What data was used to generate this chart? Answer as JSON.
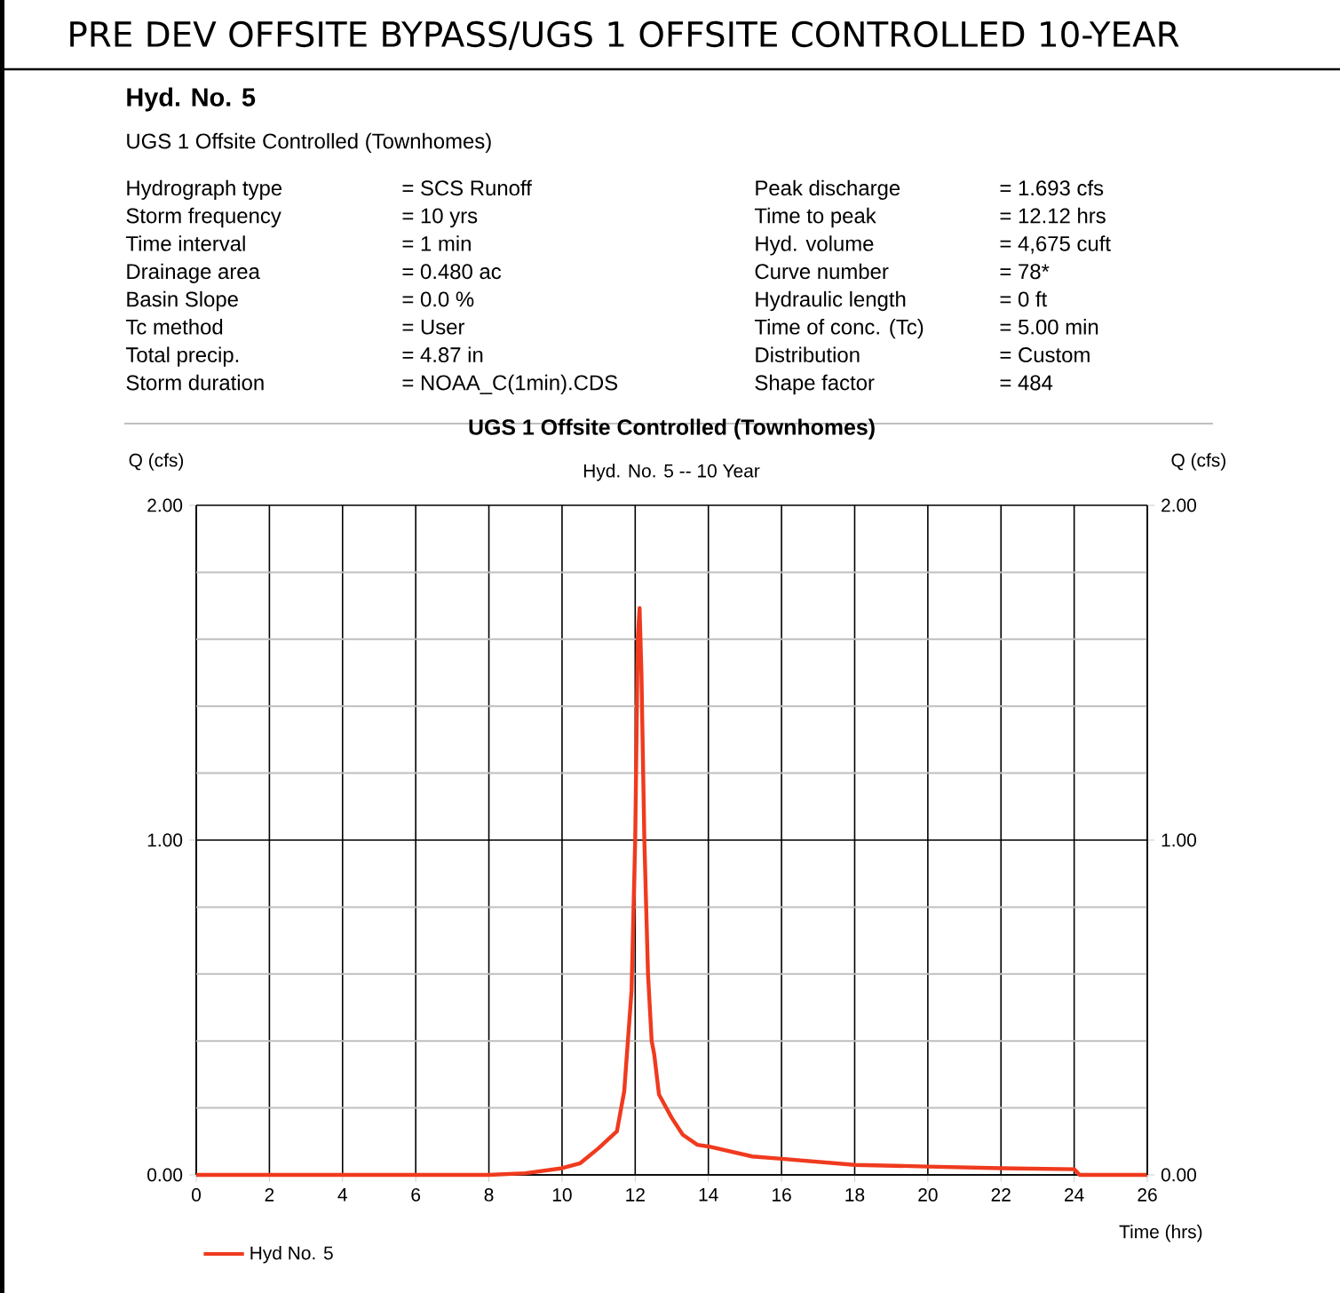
{
  "chart_data": {
    "type": "line",
    "title": "UGS 1 Offsite Controlled (Townhomes)",
    "subtitle": "Hyd. No. 5 -- 10 Year",
    "xlabel": "Time (hrs)",
    "ylabel": "Q (cfs)",
    "y2label": "Q (cfs)",
    "annotations": [
      "PRE DEV OFFSITE BYPASS/UGS 1 OFFSITE CONTROLLED 10-YEAR",
      "Hyd. No. 5",
      "UGS 1 Offsite Controlled (Townhomes)",
      "Hydrograph type",
      "= SCS Runoff",
      "Peak discharge",
      "= 1.693 cfs",
      "Storm frequency",
      "= 10 yrs",
      "Time to peak",
      "= 12.12 hrs",
      "Time interval",
      "= 1 min",
      "Hyd. volume",
      "= 4,675 cuft",
      "Drainage area",
      "= 0.480 ac",
      "Curve number",
      "= 78*",
      "Basin Slope",
      "= 0.0 %",
      "Hydraulic length",
      "= 0 ft",
      "Tc method",
      "= User",
      "Time of conc. (Tc)",
      "= 5.00 min",
      "Total precip.",
      "= 4.87 in",
      "Distribution",
      "= Custom",
      "Storm duration",
      "= NOAA_C(1min).CDS",
      "Shape factor",
      "= 484"
    ],
    "series": [
      {
        "name": "Hyd No. 5",
        "color": "#f03a1e",
        "x": [
          0,
          8,
          9,
          10,
          10.5,
          11,
          11.5,
          11.7,
          11.9,
          12.0,
          12.07,
          12.12,
          12.17,
          12.25,
          12.35,
          12.45,
          12.52,
          12.65,
          13.0,
          13.3,
          13.7,
          14,
          15.2,
          16,
          18,
          20,
          22,
          24,
          24.15,
          26
        ],
        "values": [
          0,
          0,
          0.005,
          0.02,
          0.035,
          0.08,
          0.13,
          0.25,
          0.55,
          1.0,
          1.6,
          1.693,
          1.5,
          1.0,
          0.6,
          0.4,
          0.36,
          0.24,
          0.17,
          0.12,
          0.09,
          0.085,
          0.055,
          0.048,
          0.03,
          0.025,
          0.02,
          0.017,
          0,
          0
        ]
      }
    ],
    "xlim": [
      0,
      26
    ],
    "xticks": [
      0,
      2,
      4,
      6,
      8,
      10,
      12,
      14,
      16,
      18,
      20,
      22,
      24,
      26
    ],
    "ylim": [
      0,
      2
    ],
    "yticks": [
      {
        "value": 0,
        "label": "0.00"
      },
      {
        "value": 0.2,
        "label": null
      },
      {
        "value": 0.4,
        "label": null
      },
      {
        "value": 0.6,
        "label": null
      },
      {
        "value": 0.8,
        "label": null
      },
      {
        "value": 1,
        "label": "1.00"
      },
      {
        "value": 1.2,
        "label": null
      },
      {
        "value": 1.4,
        "label": null
      },
      {
        "value": 1.6,
        "label": null
      },
      {
        "value": 1.8,
        "label": null
      },
      {
        "value": 2,
        "label": "2.00"
      }
    ],
    "y2lim": [
      0,
      2
    ],
    "y2ticks": [
      {
        "value": 0,
        "label": "0.00"
      },
      {
        "value": 1,
        "label": "1.00"
      },
      {
        "value": 2,
        "label": "2.00"
      }
    ],
    "grid": true,
    "legend": "bottom left",
    "marker": "none",
    "line_style": "solid"
  }
}
